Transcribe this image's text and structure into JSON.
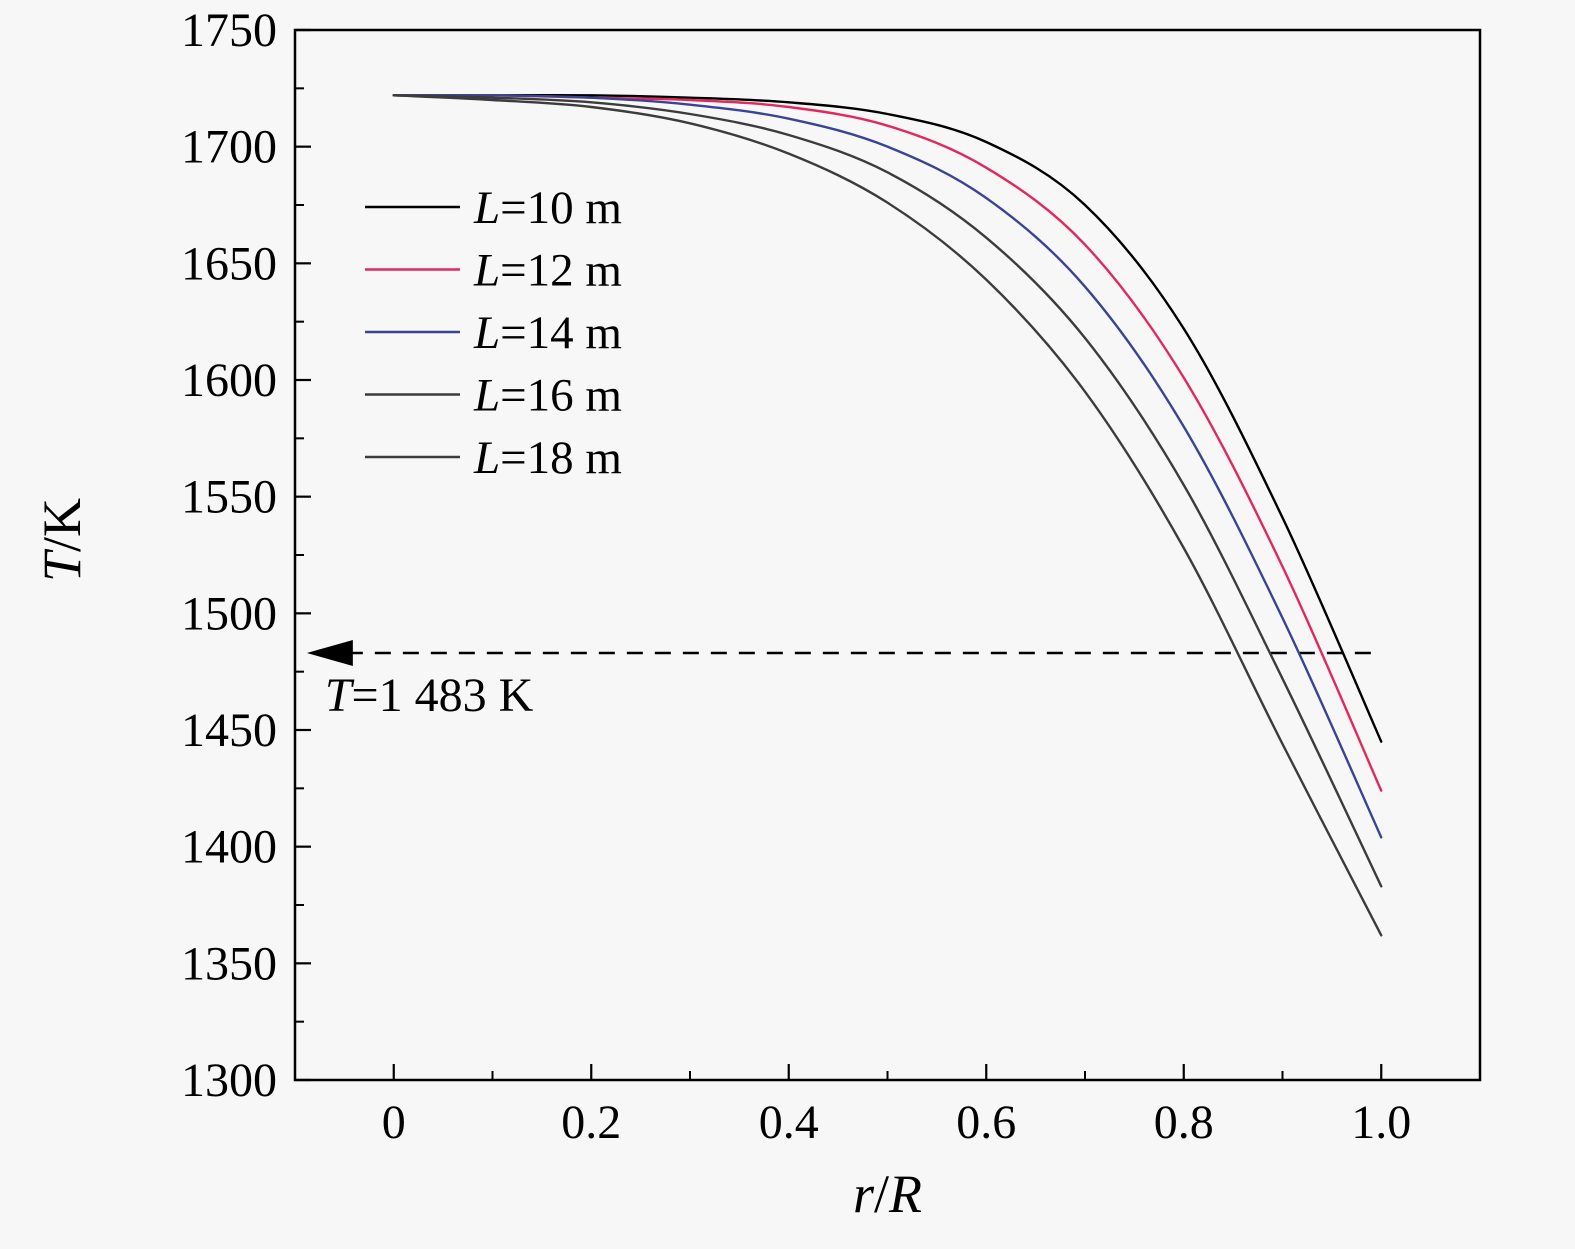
{
  "figure": {
    "background": "#f7f7f7",
    "axis_color": "#000000"
  },
  "chart_data": {
    "type": "line",
    "title": "",
    "xlabel": "r/R",
    "ylabel": "T/K",
    "xlim": [
      -0.1,
      1.1
    ],
    "ylim": [
      1300,
      1750
    ],
    "xticks": [
      0,
      0.2,
      0.4,
      0.6,
      0.8,
      1.0
    ],
    "xtick_labels": [
      "0",
      "0.2",
      "0.4",
      "0.6",
      "0.8",
      "1.0"
    ],
    "yticks": [
      1300,
      1350,
      1400,
      1450,
      1500,
      1550,
      1600,
      1650,
      1700,
      1750
    ],
    "x_minor_step": 0.1,
    "y_minor_step": 25,
    "grid": false,
    "legend_position": "upper-left-inside",
    "x": [
      0,
      0.1,
      0.2,
      0.3,
      0.4,
      0.5,
      0.6,
      0.7,
      0.8,
      0.9,
      1.0
    ],
    "series": [
      {
        "name": "L=10 m",
        "color": "#000000",
        "values": [
          1722,
          1722,
          1722,
          1721,
          1719,
          1714,
          1702,
          1675,
          1622,
          1541,
          1445
        ]
      },
      {
        "name": "L=12 m",
        "color": "#e0295e",
        "values": [
          1722,
          1722,
          1721,
          1720,
          1717,
          1709,
          1691,
          1658,
          1601,
          1520,
          1424
        ]
      },
      {
        "name": "L=14 m",
        "color": "#3a4494",
        "values": [
          1722,
          1722,
          1721,
          1718,
          1712,
          1700,
          1678,
          1640,
          1580,
          1498,
          1404
        ]
      },
      {
        "name": "L=16 m",
        "color": "#3c3c3c",
        "values": [
          1722,
          1721,
          1719,
          1714,
          1705,
          1689,
          1661,
          1618,
          1555,
          1472,
          1383
        ]
      },
      {
        "name": "L=18 m",
        "color": "#3c3c3c",
        "values": [
          1722,
          1720,
          1717,
          1710,
          1697,
          1676,
          1643,
          1595,
          1528,
          1444,
          1362
        ]
      }
    ],
    "annotation": {
      "text": "T=1 483 K",
      "y": 1483,
      "x_start": -0.088,
      "x_end": 1.0,
      "line_style": "dashed",
      "icon": "left-arrow"
    }
  }
}
